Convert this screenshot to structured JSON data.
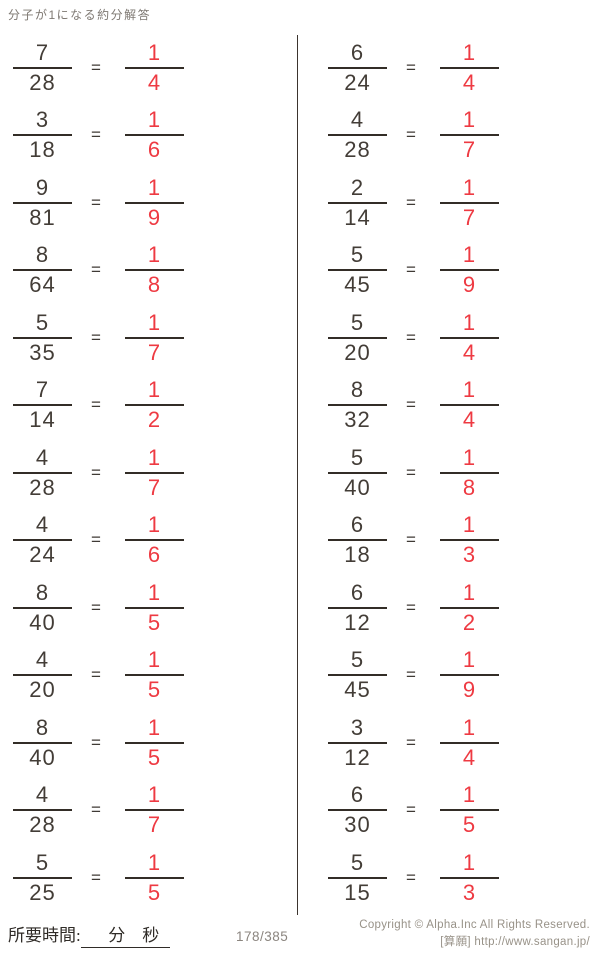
{
  "title": "分子が1になる約分解答",
  "equals": "=",
  "problems": {
    "left": [
      {
        "n": "7",
        "d": "28",
        "an": "1",
        "ad": "4"
      },
      {
        "n": "3",
        "d": "18",
        "an": "1",
        "ad": "6"
      },
      {
        "n": "9",
        "d": "81",
        "an": "1",
        "ad": "9"
      },
      {
        "n": "8",
        "d": "64",
        "an": "1",
        "ad": "8"
      },
      {
        "n": "5",
        "d": "35",
        "an": "1",
        "ad": "7"
      },
      {
        "n": "7",
        "d": "14",
        "an": "1",
        "ad": "2"
      },
      {
        "n": "4",
        "d": "28",
        "an": "1",
        "ad": "7"
      },
      {
        "n": "4",
        "d": "24",
        "an": "1",
        "ad": "6"
      },
      {
        "n": "8",
        "d": "40",
        "an": "1",
        "ad": "5"
      },
      {
        "n": "4",
        "d": "20",
        "an": "1",
        "ad": "5"
      },
      {
        "n": "8",
        "d": "40",
        "an": "1",
        "ad": "5"
      },
      {
        "n": "4",
        "d": "28",
        "an": "1",
        "ad": "7"
      },
      {
        "n": "5",
        "d": "25",
        "an": "1",
        "ad": "5"
      }
    ],
    "right": [
      {
        "n": "6",
        "d": "24",
        "an": "1",
        "ad": "4"
      },
      {
        "n": "4",
        "d": "28",
        "an": "1",
        "ad": "7"
      },
      {
        "n": "2",
        "d": "14",
        "an": "1",
        "ad": "7"
      },
      {
        "n": "5",
        "d": "45",
        "an": "1",
        "ad": "9"
      },
      {
        "n": "5",
        "d": "20",
        "an": "1",
        "ad": "4"
      },
      {
        "n": "8",
        "d": "32",
        "an": "1",
        "ad": "4"
      },
      {
        "n": "5",
        "d": "40",
        "an": "1",
        "ad": "8"
      },
      {
        "n": "6",
        "d": "18",
        "an": "1",
        "ad": "3"
      },
      {
        "n": "6",
        "d": "12",
        "an": "1",
        "ad": "2"
      },
      {
        "n": "5",
        "d": "45",
        "an": "1",
        "ad": "9"
      },
      {
        "n": "3",
        "d": "12",
        "an": "1",
        "ad": "4"
      },
      {
        "n": "6",
        "d": "30",
        "an": "1",
        "ad": "5"
      },
      {
        "n": "5",
        "d": "15",
        "an": "1",
        "ad": "3"
      }
    ]
  },
  "footer": {
    "time_label": "所要時間:",
    "time_blank": "　分　秒　",
    "page": "178/385",
    "copyright": "Copyright ©  Alpha.Inc All Rights Reserved.",
    "site": "[算願] http://www.sangan.jp/"
  },
  "colors": {
    "answer_red": "#ee3a42",
    "ink": "#433d37",
    "bar": "#332d27",
    "muted": "#989288"
  }
}
